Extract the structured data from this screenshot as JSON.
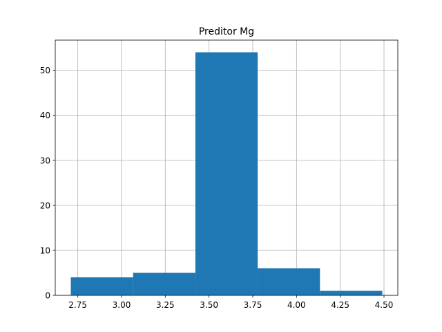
{
  "chart_data": {
    "type": "bar",
    "title": "Preditor Mg",
    "xlabel": "",
    "ylabel": "",
    "bins": [
      {
        "start": 2.71,
        "end": 3.066,
        "count": 4
      },
      {
        "start": 3.066,
        "end": 3.422,
        "count": 5
      },
      {
        "start": 3.422,
        "end": 3.778,
        "count": 54
      },
      {
        "start": 3.778,
        "end": 4.134,
        "count": 6
      },
      {
        "start": 4.134,
        "end": 4.49,
        "count": 1
      }
    ],
    "xlim": [
      2.6211,
      4.5789
    ],
    "ylim": [
      0,
      56.7
    ],
    "x_ticks": [
      {
        "value": 2.75,
        "label": "2.75"
      },
      {
        "value": 3.0,
        "label": "3.00"
      },
      {
        "value": 3.25,
        "label": "3.25"
      },
      {
        "value": 3.5,
        "label": "3.50"
      },
      {
        "value": 3.75,
        "label": "3.75"
      },
      {
        "value": 4.0,
        "label": "4.00"
      },
      {
        "value": 4.25,
        "label": "4.25"
      },
      {
        "value": 4.5,
        "label": "4.50"
      }
    ],
    "y_ticks": [
      {
        "value": 0,
        "label": "0"
      },
      {
        "value": 10,
        "label": "10"
      },
      {
        "value": 20,
        "label": "20"
      },
      {
        "value": 30,
        "label": "30"
      },
      {
        "value": 40,
        "label": "40"
      },
      {
        "value": 50,
        "label": "50"
      }
    ],
    "grid": true,
    "bar_color": "#1f77b4",
    "grid_color": "#b0b0b0"
  }
}
